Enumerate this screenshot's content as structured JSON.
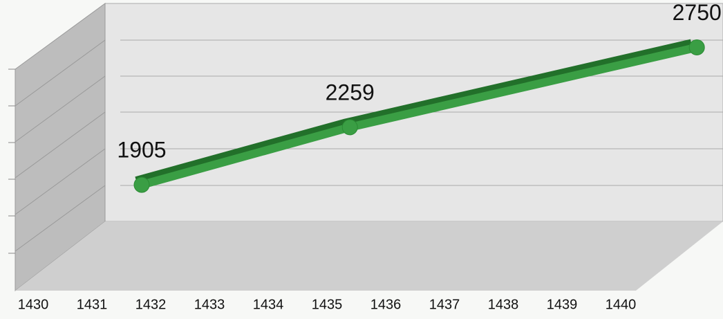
{
  "chart_data": {
    "type": "line",
    "x": [
      1432,
      1435,
      1440
    ],
    "series": [
      {
        "color": "#3a9e44",
        "values": [
          1905,
          2259,
          2750
        ]
      }
    ],
    "xlim": [
      1430,
      1440
    ],
    "xticks": [
      1430,
      1431,
      1432,
      1433,
      1434,
      1435,
      1436,
      1437,
      1438,
      1439,
      1440
    ],
    "ylim": [
      1680,
      3020
    ],
    "grid": true
  }
}
